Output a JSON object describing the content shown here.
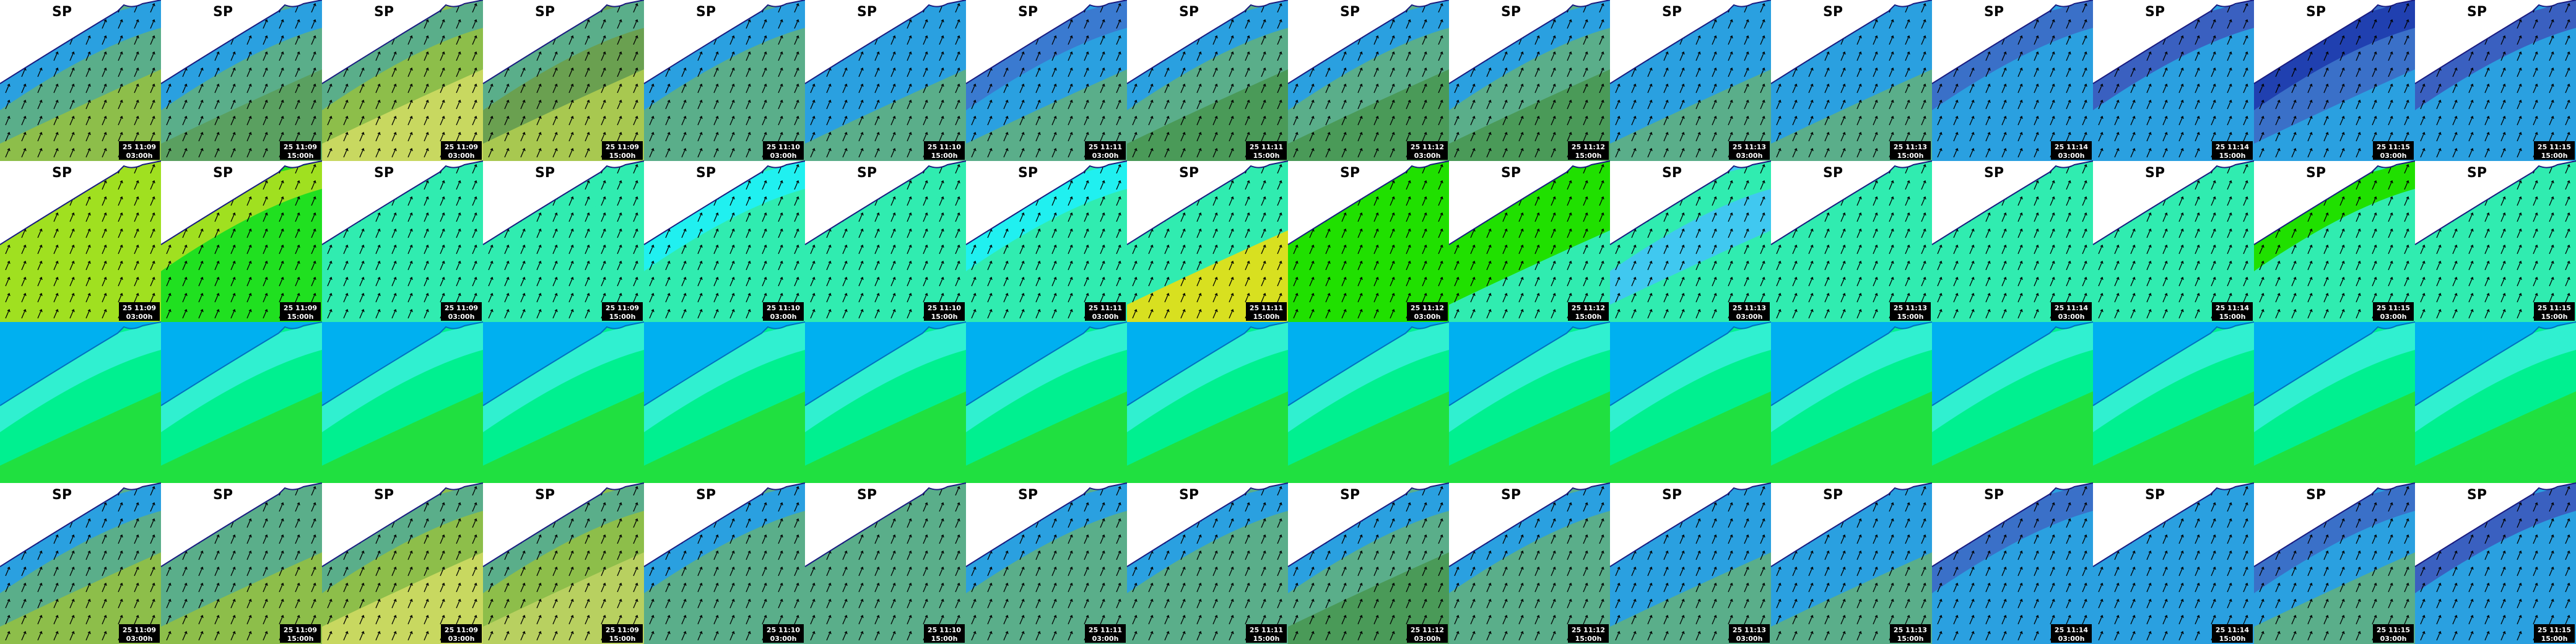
{
  "columns": [
    {
      "date": "25 11:09",
      "time": "03:00h"
    },
    {
      "date": "25 11:09",
      "time": "15:00h"
    },
    {
      "date": "25 11:09",
      "time": "03:00h"
    },
    {
      "date": "25 11:09",
      "time": "15:00h"
    },
    {
      "date": "25 11:10",
      "time": "03:00h"
    },
    {
      "date": "25 11:10",
      "time": "15:00h"
    },
    {
      "date": "25 11:11",
      "time": "03:00h"
    },
    {
      "date": "25 11:11",
      "time": "15:00h"
    },
    {
      "date": "25 11:12",
      "time": "03:00h"
    },
    {
      "date": "25 11:12",
      "time": "15:00h"
    },
    {
      "date": "25 11:13",
      "time": "03:00h"
    },
    {
      "date": "25 11:13",
      "time": "15:00h"
    },
    {
      "date": "25 11:14",
      "time": "03:00h"
    },
    {
      "date": "25 11:14",
      "time": "15:00h"
    },
    {
      "date": "25 11:15",
      "time": "03:00h"
    },
    {
      "date": "25 11:15",
      "time": "15:00h"
    }
  ],
  "rows": [
    {
      "title": "SP",
      "labels": true,
      "arrows": true,
      "land": "#ffffff",
      "colors": [
        [
          "#2aa0e0",
          "#5aae8a",
          "#8dbe4a"
        ],
        [
          "#2aa0e0",
          "#5aae8a",
          "#5aa060"
        ],
        [
          "#5aae8a",
          "#8dbe4a",
          "#c8d860"
        ],
        [
          "#5aae8a",
          "#6aa050",
          "#a8c850"
        ],
        [
          "#2aa0e0",
          "#5aae8a",
          "#5aae8a"
        ],
        [
          "#2aa0e0",
          "#2aa0e0",
          "#5aae8a"
        ],
        [
          "#3a7ad0",
          "#2aa0e0",
          "#5aae8a"
        ],
        [
          "#2aa0e0",
          "#5aae8a",
          "#4a9a58"
        ],
        [
          "#2aa0e0",
          "#5aae8a",
          "#4a9a58"
        ],
        [
          "#2aa0e0",
          "#5aae8a",
          "#4a9a58"
        ],
        [
          "#2aa0e0",
          "#2aa0e0",
          "#5aae8a"
        ],
        [
          "#2aa0e0",
          "#2aa0e0",
          "#5aae8a"
        ],
        [
          "#3a70c8",
          "#2aa0e0",
          "#2aa0e0"
        ],
        [
          "#3a60c0",
          "#2aa0e0",
          "#2aa0e0"
        ],
        [
          "#2040b0",
          "#3a70c8",
          "#2aa0e0"
        ],
        [
          "#3a60c0",
          "#2aa0e0",
          "#2aa0e0"
        ]
      ]
    },
    {
      "title": "SP",
      "labels": true,
      "arrows": true,
      "land": "#ffffff",
      "colors": [
        [
          "#a0e020",
          "#a0e020",
          "#a0e020"
        ],
        [
          "#a0e020",
          "#20e020",
          "#20e020"
        ],
        [
          "#30ecb0",
          "#30ecb0",
          "#30ecb0"
        ],
        [
          "#30ecb0",
          "#30ecb0",
          "#30ecb0"
        ],
        [
          "#20f0f0",
          "#30ecb0",
          "#30ecb0"
        ],
        [
          "#30ecb0",
          "#30ecb0",
          "#30ecb0"
        ],
        [
          "#20f0f0",
          "#30ecb0",
          "#30ecb0"
        ],
        [
          "#30ecb0",
          "#30ecb0",
          "#d8e020"
        ],
        [
          "#20e000",
          "#20e000",
          "#20e000"
        ],
        [
          "#20e000",
          "#20e000",
          "#30ecb0"
        ],
        [
          "#30ecb0",
          "#40c8f0",
          "#30ecb0"
        ],
        [
          "#30ecb0",
          "#30ecb0",
          "#30ecb0"
        ],
        [
          "#30ecb0",
          "#30ecb0",
          "#30ecb0"
        ],
        [
          "#30ecb0",
          "#30ecb0",
          "#30ecb0"
        ],
        [
          "#20e000",
          "#30ecb0",
          "#30ecb0"
        ],
        [
          "#30ecb0",
          "#30ecb0",
          "#30ecb0"
        ]
      ]
    },
    {
      "labels": false,
      "arrows": false,
      "land": "#00b0f0",
      "colors": [
        [
          "#30f0d0",
          "#00f090",
          "#20e040"
        ],
        [
          "#30f0d0",
          "#00f090",
          "#20e040"
        ],
        [
          "#30f0d0",
          "#00f090",
          "#20e040"
        ],
        [
          "#30f0d0",
          "#00f090",
          "#20e040"
        ],
        [
          "#30f0d0",
          "#00f090",
          "#20e040"
        ],
        [
          "#30f0d0",
          "#00f090",
          "#20e040"
        ],
        [
          "#30f0d0",
          "#00f090",
          "#20e040"
        ],
        [
          "#30f0d0",
          "#00f090",
          "#20e040"
        ],
        [
          "#30f0d0",
          "#00f090",
          "#20e040"
        ],
        [
          "#30f0d0",
          "#00f090",
          "#20e040"
        ],
        [
          "#30f0d0",
          "#00f090",
          "#20e040"
        ],
        [
          "#30f0d0",
          "#00f090",
          "#20e040"
        ],
        [
          "#30f0d0",
          "#00f090",
          "#20e040"
        ],
        [
          "#30f0d0",
          "#00f090",
          "#20e040"
        ],
        [
          "#30f0d0",
          "#00f090",
          "#20e040"
        ],
        [
          "#30f0d0",
          "#00f090",
          "#20e040"
        ]
      ]
    },
    {
      "title": "SP",
      "labels": true,
      "arrows": true,
      "land": "#ffffff",
      "colors": [
        [
          "#2aa0e0",
          "#5aae8a",
          "#8dbe4a"
        ],
        [
          "#5aae8a",
          "#5aae8a",
          "#8dbe4a"
        ],
        [
          "#5aae8a",
          "#8dbe4a",
          "#c8d860"
        ],
        [
          "#5aae8a",
          "#8dbe4a",
          "#b8d060"
        ],
        [
          "#2aa0e0",
          "#5aae8a",
          "#5aae8a"
        ],
        [
          "#5aae8a",
          "#5aae8a",
          "#5aae8a"
        ],
        [
          "#2aa0e0",
          "#5aae8a",
          "#5aae8a"
        ],
        [
          "#2aa0e0",
          "#5aae8a",
          "#5aae8a"
        ],
        [
          "#2aa0e0",
          "#5aae8a",
          "#4a9a58"
        ],
        [
          "#2aa0e0",
          "#5aae8a",
          "#5aae8a"
        ],
        [
          "#2aa0e0",
          "#2aa0e0",
          "#5aae8a"
        ],
        [
          "#2aa0e0",
          "#2aa0e0",
          "#5aae8a"
        ],
        [
          "#3a70c8",
          "#2aa0e0",
          "#2aa0e0"
        ],
        [
          "#2aa0e0",
          "#2aa0e0",
          "#2aa0e0"
        ],
        [
          "#3a70c8",
          "#2aa0e0",
          "#5aae8a"
        ],
        [
          "#3a60c0",
          "#2aa0e0",
          "#2aa0e0"
        ]
      ]
    }
  ]
}
